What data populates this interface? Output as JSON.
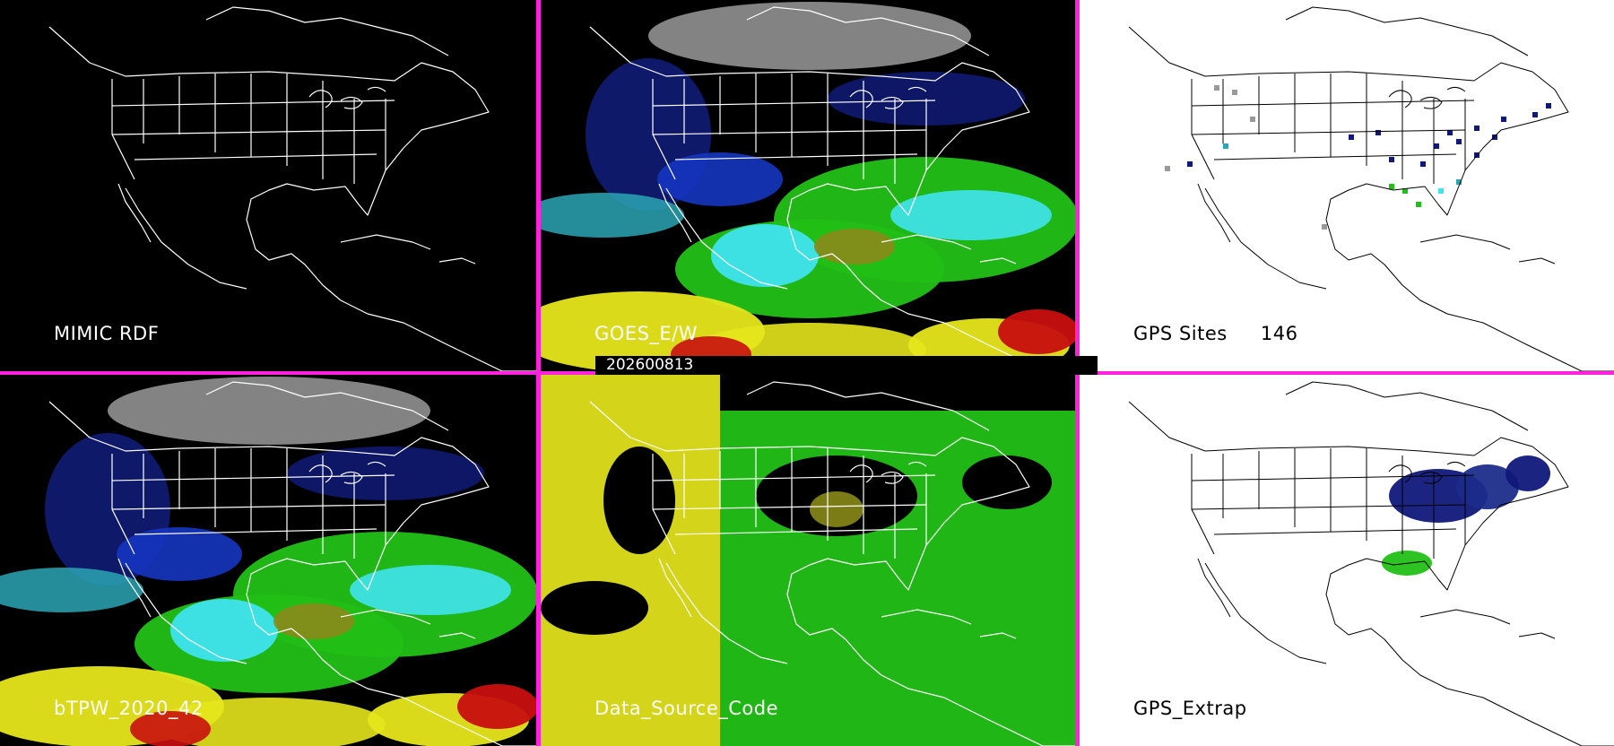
{
  "date": "202600813",
  "colors": {
    "divider": "#ff22dd",
    "background_dark": "#000000",
    "background_light": "#ffffff",
    "outline_dark": "#ffffff",
    "outline_light": "#000000",
    "tpw_gray": "#9a9a9a",
    "tpw_navy": "#101a70",
    "tpw_blue": "#1535c0",
    "tpw_teal": "#2aa6b4",
    "tpw_cyan": "#40e4ee",
    "tpw_green": "#22c016",
    "tpw_olive": "#8a8a1a",
    "tpw_yellow": "#e6e61c",
    "tpw_red": "#c80f0f"
  },
  "panels": [
    {
      "id": "mimic-rdf",
      "label": "MIMIC RDF",
      "theme": "dark",
      "content": "outline"
    },
    {
      "id": "goes-ew",
      "label": "GOES_E/W",
      "theme": "dark",
      "content": "tpw"
    },
    {
      "id": "gps-sites",
      "label": "GPS Sites",
      "count": "146",
      "theme": "light",
      "content": "sites"
    },
    {
      "id": "btpw-2020-42",
      "label": "bTPW_2020_42",
      "theme": "dark",
      "content": "tpw"
    },
    {
      "id": "data-source-code",
      "label": "Data_Source_Code",
      "theme": "dark",
      "content": "source"
    },
    {
      "id": "gps-extrap",
      "label": "GPS_Extrap",
      "theme": "light",
      "content": "extrap"
    }
  ]
}
